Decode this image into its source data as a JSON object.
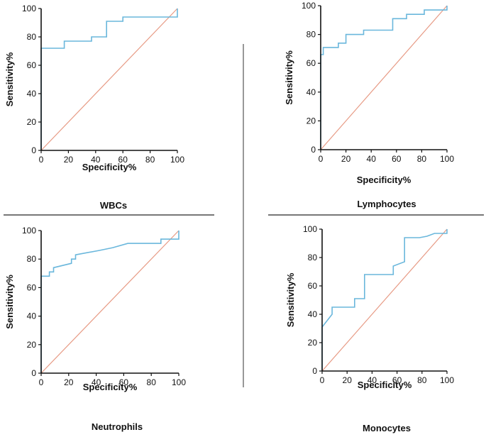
{
  "colors": {
    "roc": "#6ab7dc",
    "reference": "#e79a84",
    "axis": "#111111",
    "divider": "#777777"
  },
  "chart_data": [
    {
      "type": "line",
      "title": "WBCs",
      "xlabel": "Specificity%",
      "ylabel": "Sensitivity%",
      "xlim": [
        0,
        100
      ],
      "ylim": [
        0,
        100
      ],
      "xticks": [
        0,
        20,
        40,
        60,
        80,
        100
      ],
      "yticks": [
        0,
        20,
        40,
        60,
        80,
        100
      ],
      "series": [
        {
          "name": "ROC",
          "x": [
            0,
            0,
            0,
            17,
            17,
            37,
            37,
            48,
            48,
            60,
            60,
            100,
            100
          ],
          "y": [
            0,
            72,
            72,
            72,
            77,
            77,
            80,
            80,
            91,
            91,
            94,
            94,
            100
          ]
        },
        {
          "name": "Reference",
          "x": [
            0,
            100
          ],
          "y": [
            0,
            100
          ]
        }
      ]
    },
    {
      "type": "line",
      "title": "Lymphocytes",
      "xlabel": "Specificity%",
      "ylabel": "Sensitivity%",
      "xlim": [
        0,
        100
      ],
      "ylim": [
        0,
        100
      ],
      "xticks": [
        0,
        20,
        40,
        60,
        80,
        100
      ],
      "yticks": [
        0,
        20,
        40,
        60,
        80,
        100
      ],
      "series": [
        {
          "name": "ROC",
          "x": [
            0,
            0,
            2,
            2,
            14,
            14,
            20,
            20,
            34,
            34,
            57,
            57,
            68,
            68,
            82,
            82,
            100,
            100
          ],
          "y": [
            0,
            66,
            66,
            71,
            71,
            74,
            74,
            80,
            80,
            83,
            83,
            91,
            91,
            94,
            94,
            97,
            97,
            100
          ]
        },
        {
          "name": "Reference",
          "x": [
            0,
            100
          ],
          "y": [
            0,
            100
          ]
        }
      ]
    },
    {
      "type": "line",
      "title": "Neutrophils",
      "xlabel": "Specificity%",
      "ylabel": "Sensitivity%",
      "xlim": [
        0,
        100
      ],
      "ylim": [
        0,
        100
      ],
      "xticks": [
        0,
        20,
        40,
        60,
        80,
        100
      ],
      "yticks": [
        0,
        20,
        40,
        60,
        80,
        100
      ],
      "series": [
        {
          "name": "ROC",
          "x": [
            0,
            0,
            6,
            6,
            9,
            9,
            22,
            22,
            25,
            25,
            42,
            52,
            52,
            63,
            63,
            87,
            87,
            100,
            100
          ],
          "y": [
            0,
            68,
            68,
            71,
            71,
            74,
            77,
            80,
            80,
            83,
            86,
            88,
            88,
            91,
            91,
            91,
            94,
            94,
            100
          ]
        },
        {
          "name": "Reference",
          "x": [
            0,
            100
          ],
          "y": [
            0,
            100
          ]
        }
      ]
    },
    {
      "type": "line",
      "title": "Monocytes",
      "xlabel": "Specificity%",
      "ylabel": "Sensitivity%",
      "xlim": [
        0,
        100
      ],
      "ylim": [
        0,
        100
      ],
      "xticks": [
        0,
        20,
        40,
        60,
        80,
        100
      ],
      "yticks": [
        0,
        20,
        40,
        60,
        80,
        100
      ],
      "series": [
        {
          "name": "ROC",
          "x": [
            0,
            0,
            8,
            8,
            26,
            26,
            34,
            34,
            57,
            57,
            66,
            66,
            78,
            84,
            90,
            100,
            100
          ],
          "y": [
            0,
            31,
            40,
            45,
            45,
            51,
            51,
            68,
            68,
            74,
            77,
            94,
            94,
            95,
            97,
            97,
            100
          ]
        },
        {
          "name": "Reference",
          "x": [
            0,
            100
          ],
          "y": [
            0,
            100
          ]
        }
      ]
    }
  ]
}
